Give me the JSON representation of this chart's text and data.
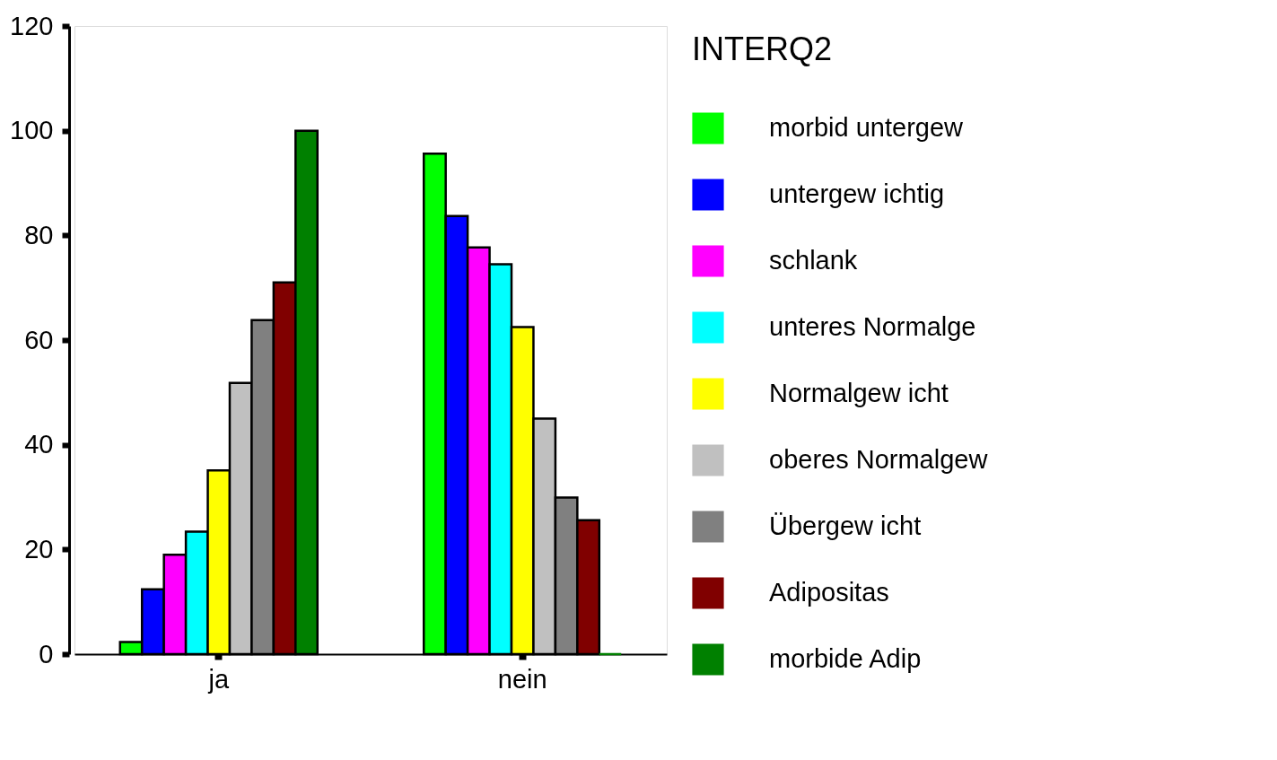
{
  "chart_data": {
    "type": "bar",
    "categories": [
      "ja",
      "nein"
    ],
    "legend_title": "INTERQ2",
    "legend": "right",
    "grid": false,
    "ylim": [
      0,
      120
    ],
    "yticks": [
      0,
      20,
      40,
      60,
      80,
      100,
      120
    ],
    "series": [
      {
        "name": "morbid untergew",
        "color": "#00ff00",
        "values": [
          2.3,
          95.6
        ]
      },
      {
        "name": "untergew ichtig",
        "color": "#0000ff",
        "values": [
          12.4,
          83.7
        ]
      },
      {
        "name": "schlank",
        "color": "#ff00ff",
        "values": [
          19,
          77.7
        ]
      },
      {
        "name": "unteres Normalge",
        "color": "#00ffff",
        "values": [
          23.4,
          74.5
        ]
      },
      {
        "name": "Normalgew icht",
        "color": "#ffff00",
        "values": [
          35.1,
          62.5
        ]
      },
      {
        "name": "oberes Normalgew",
        "color": "#c0c0c0",
        "values": [
          51.8,
          45
        ]
      },
      {
        "name": "Übergew icht",
        "color": "#808080",
        "values": [
          63.8,
          29.9
        ]
      },
      {
        "name": "Adipositas",
        "color": "#800000",
        "values": [
          71,
          25.6
        ]
      },
      {
        "name": "morbide Adip",
        "color": "#008000",
        "values": [
          100,
          0
        ]
      }
    ]
  }
}
